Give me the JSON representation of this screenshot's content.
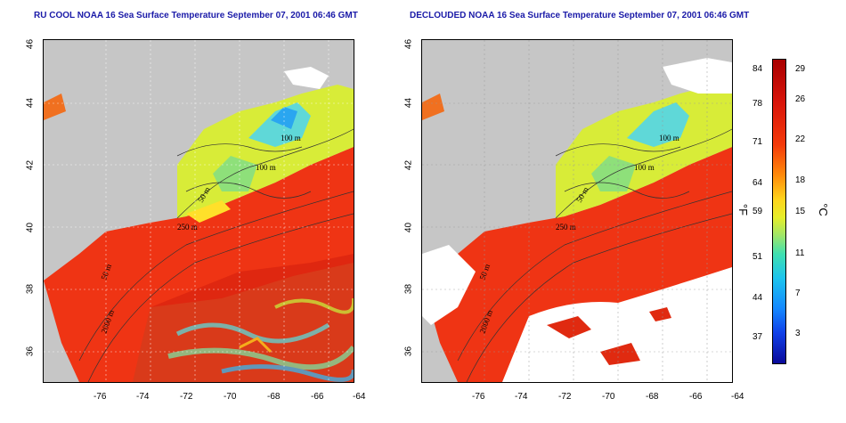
{
  "titles": {
    "left": "RU COOL NOAA 16 Sea Surface Temperature September 07, 2001 06:46 GMT",
    "right": "DECLOUDED NOAA 16 Sea Surface Temperature September 07, 2001 06:46 GMT"
  },
  "axes": {
    "lat_ticks": [
      "46",
      "44",
      "42",
      "40",
      "38",
      "36"
    ],
    "lon_ticks": [
      "-76",
      "-74",
      "-72",
      "-70",
      "-68",
      "-66",
      "-64"
    ]
  },
  "contour_labels": {
    "left": [
      "100 m",
      "100 m",
      "50 m",
      "250 m",
      "50 m",
      "2000 m"
    ],
    "right": [
      "100 m",
      "100 m",
      "50 m",
      "250 m",
      "50 m",
      "2000 m"
    ]
  },
  "colorbar": {
    "fahrenheit": [
      "84",
      "78",
      "71",
      "64",
      "59",
      "51",
      "44",
      "37"
    ],
    "celsius": [
      "29",
      "26",
      "22",
      "18",
      "15",
      "11",
      "7",
      "3"
    ],
    "unit_f": "°F",
    "unit_c": "°C",
    "colors": [
      "#a80000",
      "#f43a0a",
      "#ffd41c",
      "#9ee66a",
      "#1cc4ee",
      "#1040e8",
      "#0a0a9a"
    ]
  },
  "colors": {
    "land": "#c6c6c6",
    "title": "#1a1aa8",
    "warm_water": "#f03c14",
    "cool_water": "#c8ea3a",
    "cloud_white": "#ffffff"
  }
}
